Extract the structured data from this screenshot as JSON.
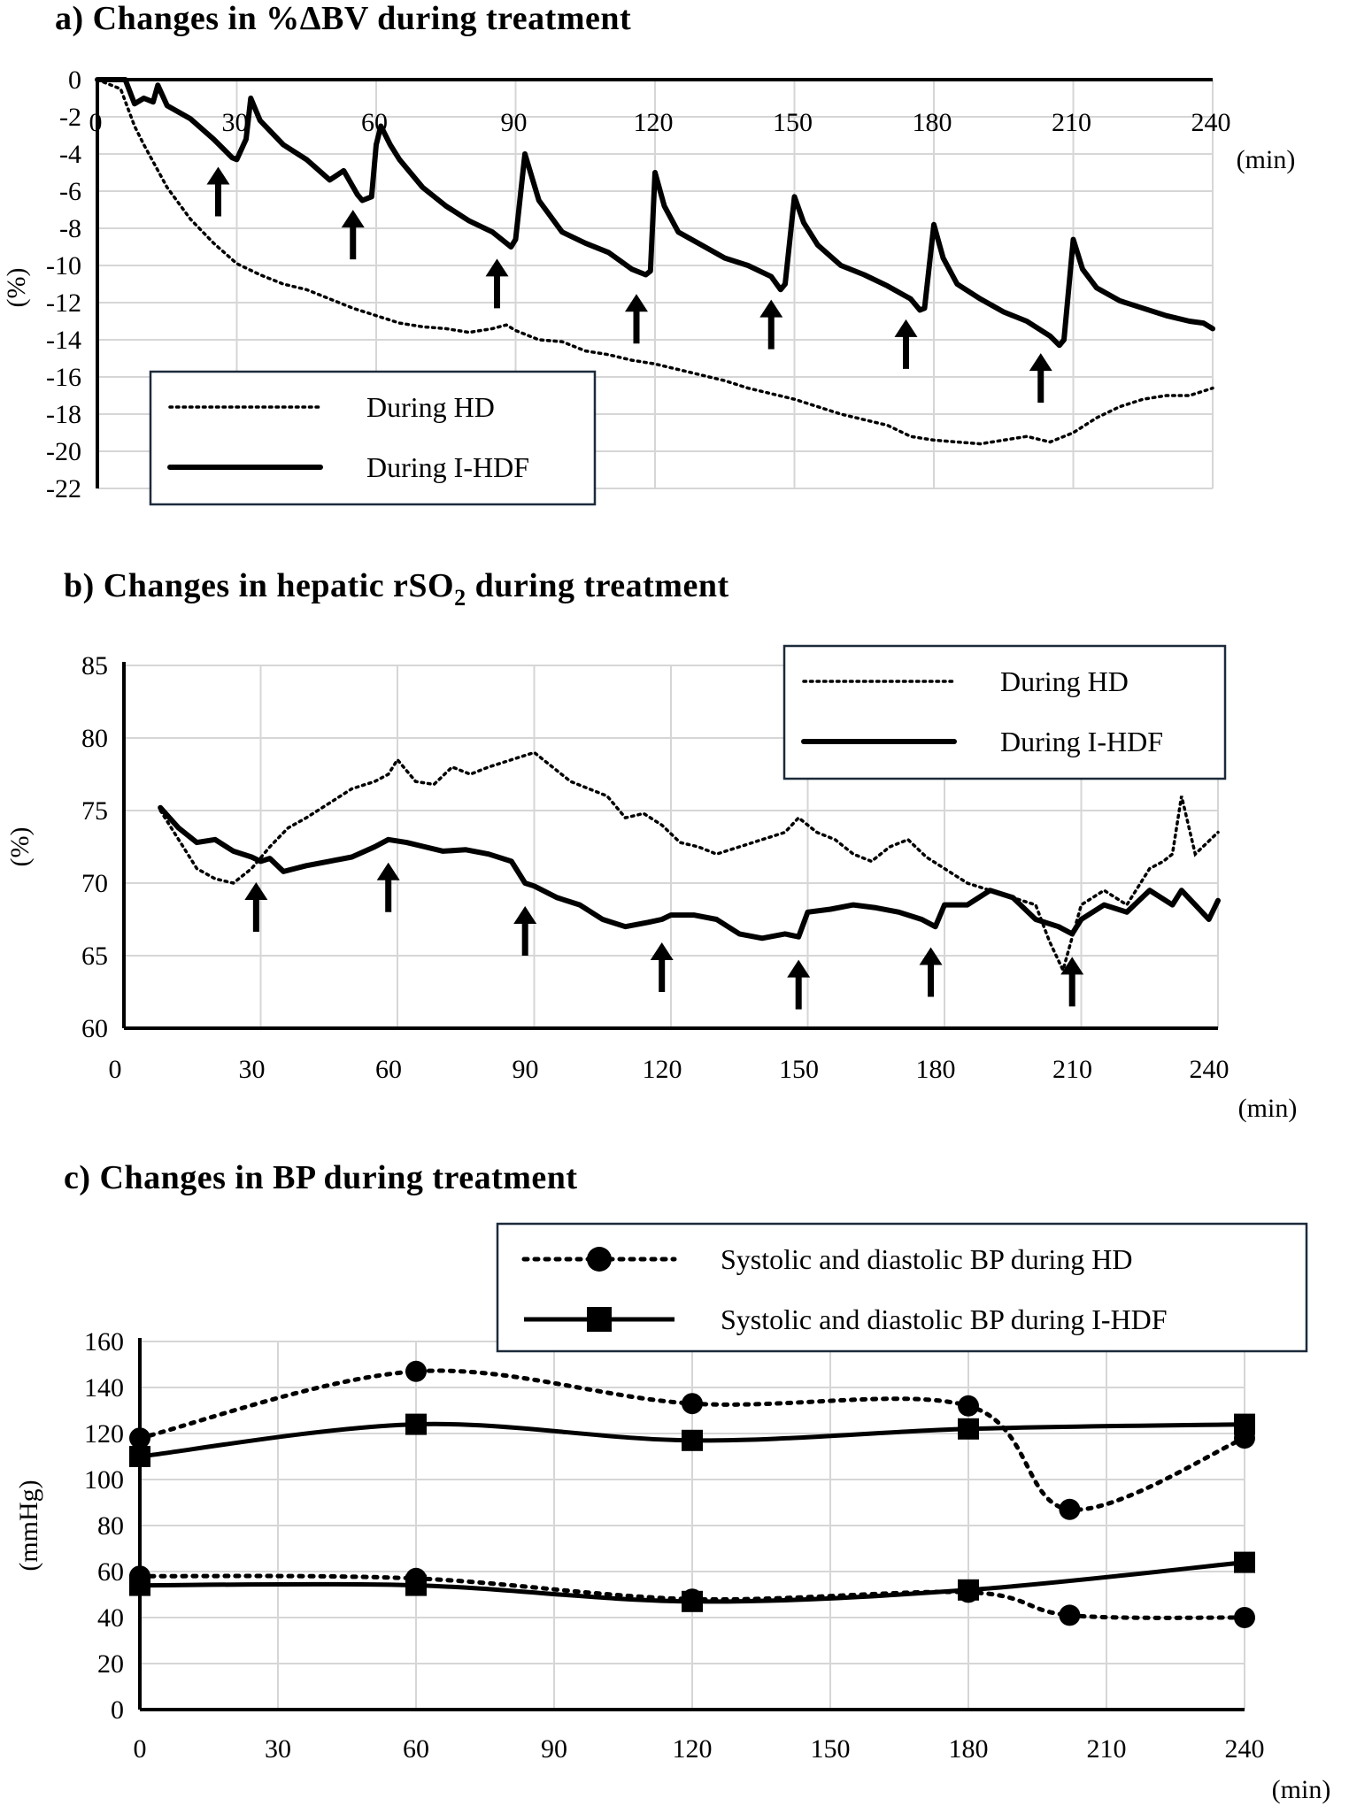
{
  "chart_data": [
    {
      "panel": "a",
      "type": "line",
      "title": "a) Changes in %ΔBV during treatment",
      "ylabel": "(%)",
      "xlabel": "(min)",
      "xlim": [
        0,
        240
      ],
      "ylim": [
        -22,
        0
      ],
      "x_ticks": [
        0,
        30,
        60,
        90,
        120,
        150,
        180,
        210,
        240
      ],
      "y_ticks": [
        0,
        -2,
        -4,
        -6,
        -8,
        -10,
        -12,
        -14,
        -16,
        -18,
        -20,
        -22
      ],
      "grid": true,
      "legend_position": "bottom-left",
      "series": [
        {
          "name": "During HD",
          "style": "dotted",
          "x": [
            0,
            5,
            8,
            10,
            15,
            20,
            25,
            30,
            35,
            40,
            45,
            50,
            55,
            60,
            65,
            70,
            75,
            80,
            85,
            88,
            90,
            95,
            100,
            105,
            110,
            115,
            120,
            125,
            130,
            135,
            140,
            145,
            150,
            155,
            160,
            165,
            170,
            175,
            180,
            185,
            190,
            195,
            200,
            205,
            210,
            215,
            220,
            225,
            230,
            235,
            240
          ],
          "y": [
            0,
            -0.5,
            -2.5,
            -3.5,
            -5.8,
            -7.5,
            -8.8,
            -9.9,
            -10.5,
            -11.0,
            -11.3,
            -11.8,
            -12.3,
            -12.7,
            -13.1,
            -13.3,
            -13.4,
            -13.6,
            -13.4,
            -13.2,
            -13.5,
            -14.0,
            -14.1,
            -14.6,
            -14.8,
            -15.1,
            -15.3,
            -15.6,
            -15.9,
            -16.2,
            -16.6,
            -16.9,
            -17.2,
            -17.6,
            -18.0,
            -18.3,
            -18.6,
            -19.2,
            -19.4,
            -19.5,
            -19.6,
            -19.4,
            -19.2,
            -19.5,
            -19.0,
            -18.2,
            -17.6,
            -17.2,
            -17.0,
            -17.0,
            -16.6
          ]
        },
        {
          "name": "During I-HDF",
          "style": "solid",
          "x": [
            0,
            6,
            8,
            10,
            12,
            13,
            15,
            20,
            25,
            29,
            30,
            32,
            33,
            35,
            40,
            45,
            50,
            53,
            56,
            57,
            59,
            60,
            61,
            63,
            65,
            70,
            75,
            80,
            85,
            89,
            90,
            92,
            95,
            100,
            105,
            110,
            115,
            118,
            119,
            120,
            122,
            125,
            130,
            135,
            140,
            145,
            147,
            148,
            150,
            152,
            155,
            160,
            165,
            170,
            175,
            177,
            178,
            180,
            182,
            185,
            190,
            195,
            200,
            205,
            207,
            208,
            210,
            212,
            215,
            220,
            225,
            230,
            235,
            238,
            240
          ],
          "y": [
            0,
            0,
            -1.3,
            -1.0,
            -1.2,
            -0.3,
            -1.4,
            -2.1,
            -3.2,
            -4.2,
            -4.3,
            -3.2,
            -1.0,
            -2.2,
            -3.5,
            -4.3,
            -5.4,
            -4.9,
            -6.2,
            -6.5,
            -6.3,
            -3.5,
            -2.5,
            -3.5,
            -4.3,
            -5.8,
            -6.8,
            -7.6,
            -8.2,
            -9.0,
            -8.6,
            -4.0,
            -6.5,
            -8.2,
            -8.8,
            -9.3,
            -10.2,
            -10.5,
            -10.3,
            -5.0,
            -6.8,
            -8.2,
            -8.9,
            -9.6,
            -10.0,
            -10.6,
            -11.3,
            -11.0,
            -6.3,
            -7.7,
            -8.9,
            -10.0,
            -10.5,
            -11.1,
            -11.8,
            -12.4,
            -12.3,
            -7.8,
            -9.6,
            -11.0,
            -11.8,
            -12.5,
            -13.0,
            -13.8,
            -14.3,
            -14.0,
            -8.6,
            -10.2,
            -11.2,
            -11.9,
            -12.3,
            -12.7,
            -13.0,
            -13.1,
            -13.4
          ]
        }
      ],
      "arrows_x": [
        26,
        55,
        86,
        116,
        145,
        174,
        203
      ]
    },
    {
      "panel": "b",
      "type": "line",
      "title": "b) Changes in hepatic rSO",
      "title_sub": "2",
      "title_end": " during treatment",
      "ylabel": "(%)",
      "xlabel": "(min)",
      "xlim": [
        0,
        240
      ],
      "ylim": [
        60,
        85
      ],
      "x_ticks": [
        0,
        30,
        60,
        90,
        120,
        150,
        180,
        210,
        240
      ],
      "y_ticks": [
        60,
        65,
        70,
        75,
        80,
        85
      ],
      "grid": true,
      "legend_position": "top-right",
      "series": [
        {
          "name": "During HD",
          "style": "dotted",
          "x": [
            8,
            12,
            16,
            20,
            24,
            28,
            32,
            36,
            40,
            45,
            50,
            55,
            58,
            60,
            64,
            68,
            72,
            76,
            80,
            85,
            90,
            94,
            98,
            102,
            106,
            110,
            114,
            118,
            122,
            126,
            130,
            135,
            140,
            145,
            148,
            152,
            156,
            160,
            164,
            168,
            172,
            176,
            180,
            185,
            190,
            195,
            200,
            203,
            206,
            210,
            215,
            220,
            225,
            228,
            230,
            232,
            235,
            240
          ],
          "y": [
            75,
            73,
            71,
            70.3,
            70.0,
            71.0,
            72.5,
            73.8,
            74.5,
            75.5,
            76.5,
            77.0,
            77.5,
            78.5,
            77.0,
            76.8,
            78.0,
            77.5,
            78.0,
            78.5,
            79.0,
            78.0,
            77.0,
            76.5,
            76.0,
            74.5,
            74.8,
            74.0,
            72.8,
            72.5,
            72.0,
            72.5,
            73.0,
            73.5,
            74.5,
            73.5,
            73.0,
            72.0,
            71.5,
            72.5,
            73.0,
            71.8,
            71.0,
            70.0,
            69.5,
            69.0,
            68.5,
            66.0,
            64.0,
            68.5,
            69.5,
            68.5,
            71.0,
            71.5,
            72.0,
            76.0,
            72.0,
            73.5
          ]
        },
        {
          "name": "During I-HDF",
          "style": "solid",
          "x": [
            8,
            12,
            16,
            20,
            24,
            28,
            30,
            32,
            35,
            40,
            45,
            50,
            55,
            58,
            62,
            66,
            70,
            75,
            80,
            85,
            88,
            90,
            95,
            100,
            105,
            110,
            115,
            118,
            120,
            125,
            130,
            135,
            140,
            145,
            148,
            150,
            155,
            160,
            165,
            170,
            175,
            178,
            180,
            185,
            190,
            195,
            200,
            205,
            208,
            210,
            215,
            220,
            225,
            230,
            232,
            235,
            238,
            240
          ],
          "y": [
            75.2,
            73.8,
            72.8,
            73.0,
            72.2,
            71.8,
            71.5,
            71.7,
            70.8,
            71.2,
            71.5,
            71.8,
            72.5,
            73.0,
            72.8,
            72.5,
            72.2,
            72.3,
            72.0,
            71.5,
            70.0,
            69.8,
            69.0,
            68.5,
            67.5,
            67.0,
            67.3,
            67.5,
            67.8,
            67.8,
            67.5,
            66.5,
            66.2,
            66.5,
            66.3,
            68.0,
            68.2,
            68.5,
            68.3,
            68.0,
            67.5,
            67.0,
            68.5,
            68.5,
            69.5,
            69.0,
            67.5,
            67.0,
            66.5,
            67.5,
            68.5,
            68.0,
            69.5,
            68.5,
            69.5,
            68.5,
            67.5,
            68.8
          ]
        }
      ],
      "arrows_x": [
        29,
        58,
        88,
        118,
        148,
        177,
        208
      ]
    },
    {
      "panel": "c",
      "type": "line",
      "title": "c) Changes in BP during treatment",
      "ylabel": "(mmHg)",
      "xlabel": "(min)",
      "xlim": [
        0,
        240
      ],
      "ylim": [
        0,
        160
      ],
      "x_ticks": [
        0,
        30,
        60,
        90,
        120,
        150,
        180,
        210,
        240
      ],
      "y_ticks": [
        0,
        20,
        40,
        60,
        80,
        100,
        120,
        140,
        160
      ],
      "grid": true,
      "legend_position": "top-right",
      "series": [
        {
          "name": "Systolic and diastolic BP during HD",
          "style": "dotted",
          "marker": "circle",
          "systolic": {
            "x": [
              0,
              60,
              120,
              180,
              202,
              240
            ],
            "y": [
              118,
              147,
              133,
              132,
              87,
              118
            ]
          },
          "diastolic": {
            "x": [
              0,
              60,
              120,
              180,
              202,
              240
            ],
            "y": [
              58,
              57,
              48,
              51,
              41,
              40
            ]
          }
        },
        {
          "name": "Systolic and diastolic BP during I-HDF",
          "style": "solid",
          "marker": "square",
          "systolic": {
            "x": [
              0,
              60,
              120,
              180,
              240
            ],
            "y": [
              110,
              124,
              117,
              122,
              124
            ]
          },
          "diastolic": {
            "x": [
              0,
              60,
              120,
              180,
              240
            ],
            "y": [
              54,
              54,
              47,
              52,
              64
            ]
          }
        }
      ]
    }
  ]
}
